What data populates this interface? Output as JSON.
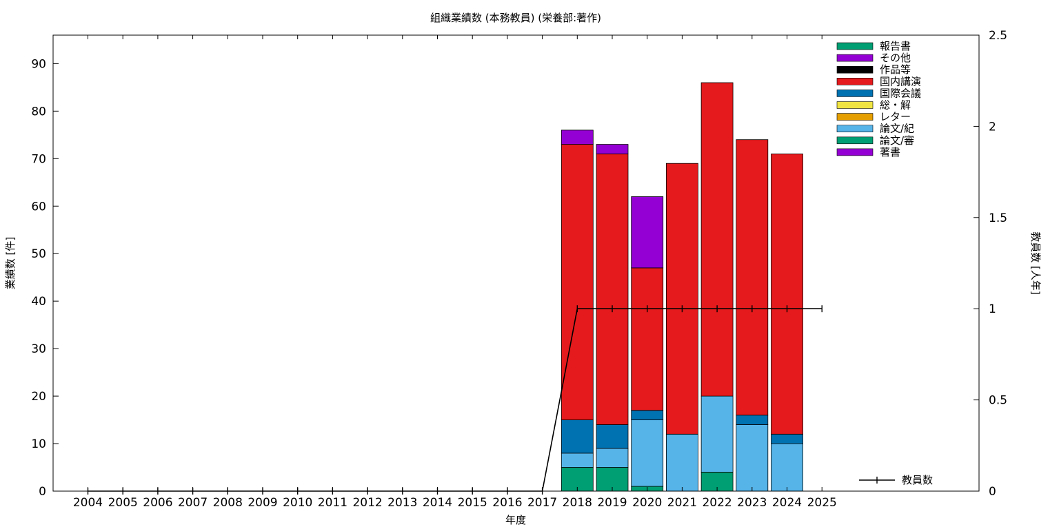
{
  "chart_data": {
    "type": "bar",
    "title": "組織業績数 (本務教員) (栄養部:著作)",
    "xlabel": "年度",
    "ylabel": "業績数 [件]",
    "y2label": "教員数 [人年]",
    "categories": [
      "2004",
      "2005",
      "2006",
      "2007",
      "2008",
      "2009",
      "2010",
      "2011",
      "2012",
      "2013",
      "2014",
      "2015",
      "2016",
      "2017",
      "2018",
      "2019",
      "2020",
      "2021",
      "2022",
      "2023",
      "2024",
      "2025"
    ],
    "ylim": [
      0,
      96
    ],
    "yticks": [
      0,
      10,
      20,
      30,
      40,
      50,
      60,
      70,
      80,
      90
    ],
    "y2lim": [
      0,
      2.5
    ],
    "y2ticks": [
      0,
      0.5,
      1,
      1.5,
      2,
      2.5
    ],
    "y2tick_labels": [
      "0",
      "0.5",
      "1",
      "1.5",
      "2",
      "2.5"
    ],
    "grid": false,
    "legend_position": "top-right",
    "series": [
      {
        "name": "報告書",
        "color": "#009e73",
        "values": [
          0,
          0,
          0,
          0,
          0,
          0,
          0,
          0,
          0,
          0,
          0,
          0,
          0,
          0,
          5,
          5,
          1,
          0,
          4,
          0,
          0,
          0
        ]
      },
      {
        "name": "その他",
        "color": "#9400d3",
        "values": [
          0,
          0,
          0,
          0,
          0,
          0,
          0,
          0,
          0,
          0,
          0,
          0,
          0,
          0,
          0,
          0,
          0,
          0,
          0,
          0,
          0,
          0
        ]
      },
      {
        "name": "作品等",
        "color": "#000000",
        "values": [
          0,
          0,
          0,
          0,
          0,
          0,
          0,
          0,
          0,
          0,
          0,
          0,
          0,
          0,
          0,
          0,
          0,
          0,
          0,
          0,
          0,
          0
        ]
      },
      {
        "name": "国内講演",
        "color": "#e41a1c",
        "values": [
          0,
          0,
          0,
          0,
          0,
          0,
          0,
          0,
          0,
          0,
          0,
          0,
          0,
          0,
          58,
          57,
          30,
          57,
          66,
          58,
          59,
          0
        ]
      },
      {
        "name": "国際会議",
        "color": "#0072b2",
        "values": [
          0,
          0,
          0,
          0,
          0,
          0,
          0,
          0,
          0,
          0,
          0,
          0,
          0,
          0,
          7,
          5,
          2,
          0,
          0,
          2,
          2,
          0
        ]
      },
      {
        "name": "総・解",
        "color": "#f0e442",
        "values": [
          0,
          0,
          0,
          0,
          0,
          0,
          0,
          0,
          0,
          0,
          0,
          0,
          0,
          0,
          0,
          0,
          0,
          0,
          0,
          0,
          0,
          0
        ]
      },
      {
        "name": "レター",
        "color": "#e69f00",
        "values": [
          0,
          0,
          0,
          0,
          0,
          0,
          0,
          0,
          0,
          0,
          0,
          0,
          0,
          0,
          0,
          0,
          0,
          0,
          0,
          0,
          0,
          0
        ]
      },
      {
        "name": "論文/紀",
        "color": "#56b4e9",
        "values": [
          0,
          0,
          0,
          0,
          0,
          0,
          0,
          0,
          0,
          0,
          0,
          0,
          0,
          0,
          3,
          4,
          14,
          12,
          16,
          14,
          10,
          0
        ]
      },
      {
        "name": "論文/審",
        "color": "#009e73",
        "values": [
          0,
          0,
          0,
          0,
          0,
          0,
          0,
          0,
          0,
          0,
          0,
          0,
          0,
          0,
          0,
          0,
          0,
          0,
          0,
          0,
          0,
          0
        ]
      },
      {
        "name": "著書",
        "color": "#9400d3",
        "values": [
          0,
          0,
          0,
          0,
          0,
          0,
          0,
          0,
          0,
          0,
          0,
          0,
          0,
          0,
          3,
          2,
          15,
          0,
          0,
          0,
          0,
          0
        ]
      }
    ],
    "stack_order": [
      "報告書",
      "論文/審",
      "論文/紀",
      "レター",
      "総・解",
      "国際会議",
      "国内講演",
      "作品等",
      "その他",
      "著書"
    ],
    "stack_offsets": [
      {
        "category": "2020",
        "series": "報告書",
        "offset_on_top": 0
      }
    ],
    "line_series": {
      "name": "教員数",
      "color": "#000000",
      "axis": "y2",
      "values": [
        0,
        0,
        0,
        0,
        0,
        0,
        0,
        0,
        0,
        0,
        0,
        0,
        0,
        0,
        1,
        1,
        1,
        1,
        1,
        1,
        1,
        1
      ]
    }
  }
}
